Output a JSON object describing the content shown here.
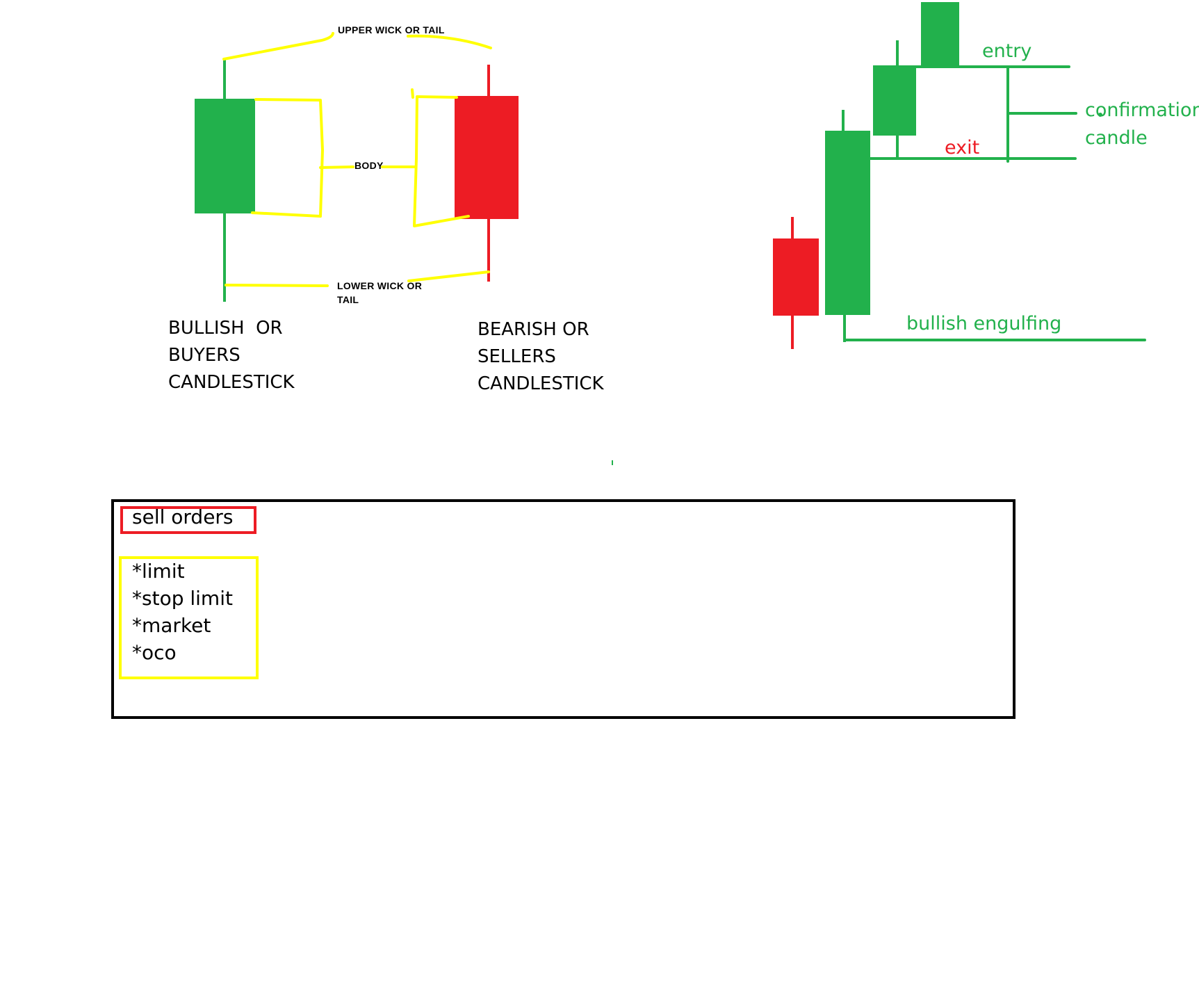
{
  "colors": {
    "bull": "#22b14c",
    "bear": "#ed1c24",
    "highlight": "#ffff00",
    "border": "#000000"
  },
  "anatomy": {
    "upper_wick_label": "UPPER WICK OR TAIL",
    "body_label": "BODY",
    "lower_wick_label_line1": "LOWER WICK OR",
    "lower_wick_label_line2": "TAIL",
    "bullish_caption": [
      "BULLISH  OR",
      "BUYERS",
      "CANDLESTICK"
    ],
    "bearish_caption": [
      "BEARISH OR",
      "SELLERS",
      "CANDLESTICK"
    ]
  },
  "pattern": {
    "entry_label": "entry",
    "exit_label": "exit",
    "confirmation_label_line1": "confirmation",
    "confirmation_label_line2": "candle",
    "engulfing_label": "bullish engulfing"
  },
  "orders_panel": {
    "title": "sell orders",
    "items": [
      "*limit",
      "*stop limit",
      "*market",
      "*oco"
    ]
  }
}
